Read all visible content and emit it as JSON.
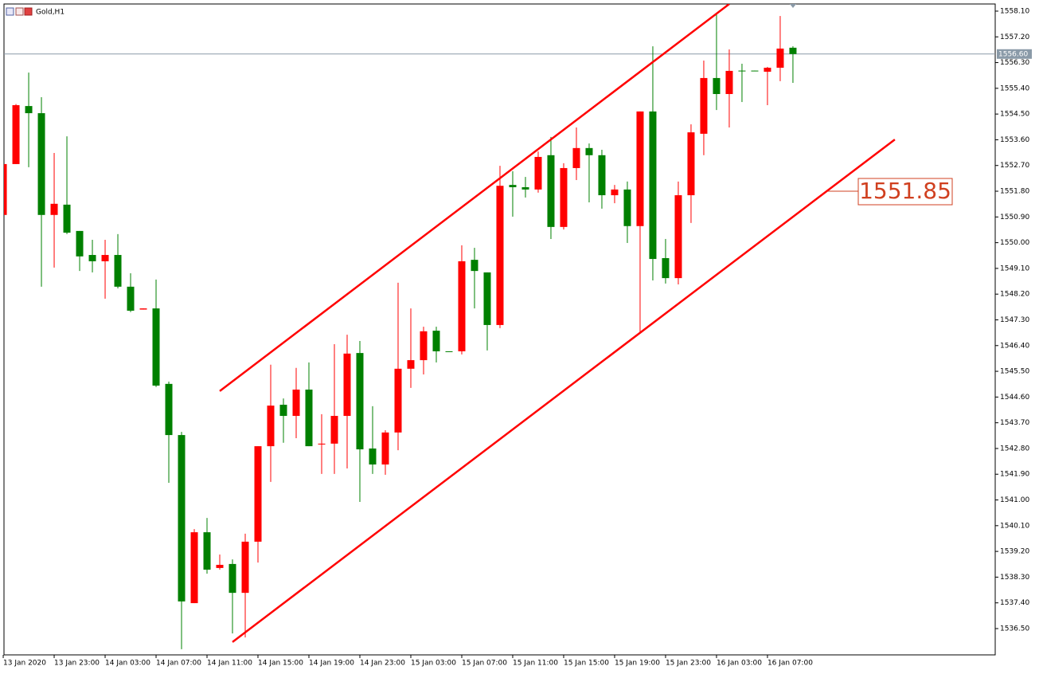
{
  "chart_data": {
    "type": "candlestick",
    "title": "Gold,H1",
    "categories": [
      "13 Jan 2020",
      null,
      null,
      null,
      "13 Jan 23:00",
      null,
      null,
      null,
      "14 Jan 03:00",
      null,
      null,
      null,
      "14 Jan 07:00",
      null,
      null,
      null,
      "14 Jan 11:00",
      null,
      null,
      null,
      "14 Jan 15:00",
      null,
      null,
      null,
      "14 Jan 19:00",
      null,
      null,
      null,
      "14 Jan 23:00",
      null,
      null,
      null,
      "15 Jan 03:00",
      null,
      null,
      null,
      "15 Jan 07:00",
      null,
      null,
      null,
      "15 Jan 11:00",
      null,
      null,
      null,
      "15 Jan 15:00",
      null,
      null,
      null,
      "15 Jan 19:00",
      null,
      null,
      null,
      "15 Jan 23:00",
      null,
      null,
      null,
      "16 Jan 03:00",
      null,
      null,
      null,
      "16 Jan 07:00",
      null,
      null
    ],
    "open": [
      1550.97,
      1552.75,
      1554.78,
      1554.53,
      1550.97,
      1551.33,
      1550.41,
      1549.57,
      1549.35,
      1549.57,
      1548.46,
      1547.66,
      1547.7,
      1545.06,
      1543.27,
      1537.39,
      1539.87,
      1538.62,
      1538.76,
      1537.75,
      1539.54,
      1542.88,
      1544.33,
      1543.94,
      1544.86,
      1542.94,
      1542.97,
      1543.94,
      1546.14,
      1542.8,
      1542.24,
      1543.36,
      1545.59,
      1545.89,
      1546.92,
      1546.2,
      1546.2,
      1549.4,
      1548.96,
      1547.12,
      1552.02,
      1551.94,
      1551.86,
      1553.06,
      1550.55,
      1552.61,
      1553.31,
      1553.06,
      1551.66,
      1551.86,
      1550.58,
      1554.59,
      1549.46,
      1548.76,
      1551.66,
      1553.81,
      1555.76,
      1555.2,
      1556.02,
      1556.02,
      1555.98,
      1556.12,
      1556.82
    ],
    "high": [
      1552.75,
      1554.85,
      1555.95,
      1555.09,
      1553.14,
      1553.72,
      1550.41,
      1550.1,
      1550.1,
      1550.3,
      1548.93,
      1547.7,
      1548.71,
      1545.14,
      1543.38,
      1539.98,
      1540.37,
      1539.09,
      1538.92,
      1539.82,
      1542.88,
      1545.73,
      1544.55,
      1545.62,
      1545.81,
      1544.0,
      1546.45,
      1546.78,
      1546.56,
      1544.28,
      1543.44,
      1548.6,
      1547.7,
      1547.06,
      1547.06,
      1546.2,
      1549.91,
      1549.82,
      1548.96,
      1552.69,
      1552.5,
      1552.3,
      1553.19,
      1553.7,
      1552.78,
      1554.03,
      1553.47,
      1553.25,
      1552.02,
      1552.14,
      1554.59,
      1556.87,
      1550.13,
      1552.14,
      1554.14,
      1556.37,
      1557.99,
      1556.76,
      1556.26,
      1556.02,
      1556.15,
      1557.93,
      1556.87
    ],
    "low": [
      1550.97,
      1552.75,
      1552.64,
      1548.46,
      1549.13,
      1550.3,
      1549.01,
      1548.96,
      1548.04,
      1548.4,
      1547.57,
      1547.66,
      1544.95,
      1541.6,
      1535.78,
      1537.39,
      1538.42,
      1538.56,
      1536.33,
      1536.19,
      1538.81,
      1541.63,
      1543.0,
      1543.16,
      1542.88,
      1541.91,
      1541.91,
      1542.1,
      1540.93,
      1541.91,
      1541.88,
      1542.74,
      1544.92,
      1545.39,
      1545.81,
      1546.18,
      1546.09,
      1547.7,
      1546.23,
      1547.01,
      1550.91,
      1551.58,
      1551.75,
      1550.13,
      1550.46,
      1552.19,
      1551.41,
      1551.19,
      1551.38,
      1549.99,
      1546.84,
      1548.68,
      1548.57,
      1548.54,
      1550.69,
      1553.06,
      1554.64,
      1554.03,
      1554.92,
      1556.0,
      1554.81,
      1555.65,
      1555.59
    ],
    "close": [
      1552.75,
      1554.81,
      1554.53,
      1550.97,
      1551.36,
      1550.35,
      1549.52,
      1549.35,
      1549.57,
      1548.46,
      1547.62,
      1547.7,
      1545.0,
      1543.27,
      1537.45,
      1539.87,
      1538.56,
      1538.73,
      1537.75,
      1539.54,
      1542.88,
      1544.3,
      1543.94,
      1544.86,
      1542.88,
      1542.97,
      1543.94,
      1546.12,
      1542.77,
      1542.24,
      1543.36,
      1545.59,
      1545.89,
      1546.9,
      1546.2,
      1546.18,
      1549.35,
      1549.01,
      1547.12,
      1551.99,
      1551.94,
      1551.86,
      1553.0,
      1550.55,
      1552.61,
      1553.31,
      1553.06,
      1551.66,
      1551.86,
      1550.58,
      1554.59,
      1549.43,
      1548.76,
      1551.66,
      1553.86,
      1555.76,
      1555.2,
      1556.01,
      1556.0,
      1556.0,
      1556.12,
      1556.79,
      1556.6
    ],
    "up_color": "#ff0000",
    "down_color": "#008000",
    "xlim": [
      0.06,
      77.88
    ],
    "ylim": [
      1535.58,
      1558.35
    ],
    "yticks": [
      {
        "value": 1558.1,
        "label": "1558.10"
      },
      {
        "value": 1557.2,
        "label": "1557.20"
      },
      {
        "value": 1556.3,
        "label": "1556.30"
      },
      {
        "value": 1555.4,
        "label": "1555.40"
      },
      {
        "value": 1554.5,
        "label": "1554.50"
      },
      {
        "value": 1553.6,
        "label": "1553.60"
      },
      {
        "value": 1552.7,
        "label": "1552.70"
      },
      {
        "value": 1551.8,
        "label": "1551.80"
      },
      {
        "value": 1550.9,
        "label": "1550.90"
      },
      {
        "value": 1550,
        "label": "1550.00"
      },
      {
        "value": 1549.1,
        "label": "1549.10"
      },
      {
        "value": 1548.2,
        "label": "1548.20"
      },
      {
        "value": 1547.3,
        "label": "1547.30"
      },
      {
        "value": 1546.4,
        "label": "1546.40"
      },
      {
        "value": 1545.5,
        "label": "1545.50"
      },
      {
        "value": 1544.6,
        "label": "1544.60"
      },
      {
        "value": 1543.7,
        "label": "1543.70"
      },
      {
        "value": 1542.8,
        "label": "1542.80"
      },
      {
        "value": 1541.9,
        "label": "1541.90"
      },
      {
        "value": 1541,
        "label": "1541.00"
      },
      {
        "value": 1540.1,
        "label": "1540.10"
      },
      {
        "value": 1539.2,
        "label": "1539.20"
      },
      {
        "value": 1538.3,
        "label": "1538.30"
      },
      {
        "value": 1537.4,
        "label": "1537.40"
      },
      {
        "value": 1536.5,
        "label": "1536.50"
      }
    ],
    "current_price": {
      "value": 1556.6,
      "label": "1556.60"
    },
    "trendlines": [
      {
        "color": "#ff0000",
        "x": [
          17,
          57
        ],
        "y": [
          1544.81,
          1558.35
        ]
      },
      {
        "color": "#ff0000",
        "x": [
          18,
          70
        ],
        "y": [
          1536.03,
          1553.61
        ]
      }
    ],
    "annotation": "1551.85",
    "grid": false
  }
}
